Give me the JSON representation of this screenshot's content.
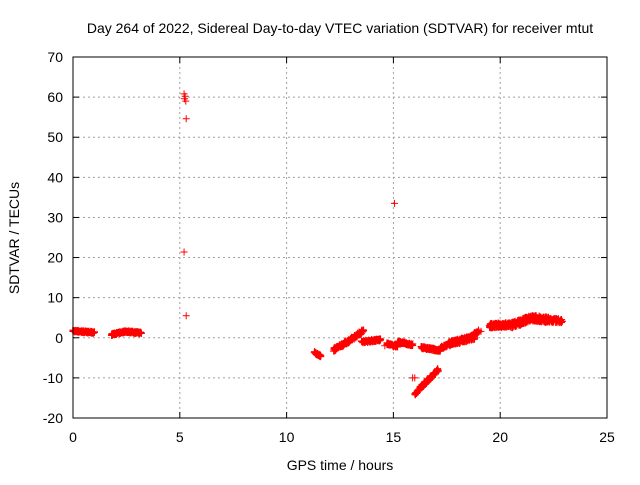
{
  "chart_data": {
    "type": "scatter",
    "title": "Day 264 of 2022, Sidereal Day-to-day VTEC variation (SDTVAR) for receiver mtut",
    "xlabel": "GPS time / hours",
    "ylabel": "SDTVAR / TECUs",
    "xlim": [
      0,
      25
    ],
    "ylim": [
      -20,
      70
    ],
    "xticks": [
      0,
      5,
      10,
      15,
      20,
      25
    ],
    "yticks": [
      -20,
      -10,
      0,
      10,
      20,
      30,
      40,
      50,
      60,
      70
    ],
    "grid": true,
    "marker": "+",
    "color": "#ff0000",
    "series": [
      {
        "name": "mtut",
        "segments": [
          {
            "x": [
              0.0,
              1.0
            ],
            "y": [
              1.7,
              1.3
            ],
            "spread": 0.5
          },
          {
            "x": [
              1.8,
              2.4
            ],
            "y": [
              0.8,
              1.5
            ],
            "spread": 0.5
          },
          {
            "x": [
              2.4,
              3.2
            ],
            "y": [
              1.6,
              1.2
            ],
            "spread": 0.5
          },
          {
            "x": [
              11.3,
              11.6
            ],
            "y": [
              -3.6,
              -4.6
            ],
            "spread": 0.6
          },
          {
            "x": [
              12.2,
              13.0
            ],
            "y": [
              -3.0,
              -0.5
            ],
            "spread": 0.9
          },
          {
            "x": [
              13.0,
              13.6
            ],
            "y": [
              -0.5,
              1.8
            ],
            "spread": 0.9
          },
          {
            "x": [
              13.5,
              14.4
            ],
            "y": [
              -1.0,
              -0.5
            ],
            "spread": 0.6
          },
          {
            "x": [
              14.7,
              15.2
            ],
            "y": [
              -1.5,
              -2.2
            ],
            "spread": 0.5
          },
          {
            "x": [
              15.2,
              15.9
            ],
            "y": [
              -1.0,
              -1.8
            ],
            "spread": 0.6
          },
          {
            "x": [
              16.3,
              17.2
            ],
            "y": [
              -2.4,
              -3.2
            ],
            "spread": 0.6
          },
          {
            "x": [
              17.2,
              17.6
            ],
            "y": [
              -2.6,
              -1.6
            ],
            "spread": 0.8
          },
          {
            "x": [
              17.6,
              18.8
            ],
            "y": [
              -1.5,
              0.2
            ],
            "spread": 1.2
          },
          {
            "x": [
              18.6,
              19.0
            ],
            "y": [
              0.0,
              1.8
            ],
            "spread": 0.8
          },
          {
            "x": [
              19.5,
              20.5
            ],
            "y": [
              3.0,
              3.2
            ],
            "spread": 1.2
          },
          {
            "x": [
              20.5,
              21.4
            ],
            "y": [
              3.0,
              4.8
            ],
            "spread": 1.5
          },
          {
            "x": [
              21.4,
              22.3
            ],
            "y": [
              5.0,
              4.4
            ],
            "spread": 1.4
          },
          {
            "x": [
              22.3,
              22.9
            ],
            "y": [
              4.4,
              4.2
            ],
            "spread": 1.0
          },
          {
            "x": [
              16.0,
              16.3
            ],
            "y": [
              -14.2,
              -12.2
            ],
            "spread": 0.6
          },
          {
            "x": [
              16.3,
              17.1
            ],
            "y": [
              -12.2,
              -8.0
            ],
            "spread": 0.9
          }
        ],
        "points": [
          {
            "x": 5.2,
            "y": 60.8
          },
          {
            "x": 5.25,
            "y": 60.2
          },
          {
            "x": 5.22,
            "y": 59.6
          },
          {
            "x": 5.28,
            "y": 59.0
          },
          {
            "x": 5.3,
            "y": 54.6
          },
          {
            "x": 5.2,
            "y": 21.4
          },
          {
            "x": 5.3,
            "y": 5.5
          },
          {
            "x": 15.05,
            "y": 33.5
          },
          {
            "x": 15.9,
            "y": -10.0
          },
          {
            "x": 16.0,
            "y": -10.0
          },
          {
            "x": 14.6,
            "y": -2.0
          },
          {
            "x": 15.0,
            "y": -2.3
          },
          {
            "x": 19.1,
            "y": 1.6
          }
        ]
      }
    ]
  }
}
